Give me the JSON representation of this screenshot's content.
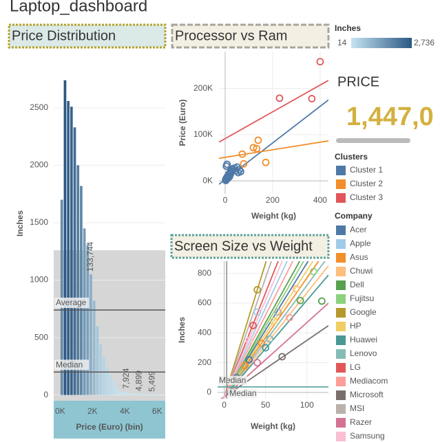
{
  "title": "Laptop_dashboard",
  "kpi": {
    "title": "PRICE",
    "value": "1,447,0"
  },
  "chart_data": [
    {
      "type": "histogram",
      "title": "Price Distribution",
      "x_label": "Price (Euro) (bin)",
      "y_label": "Inches",
      "bins": [
        0,
        200,
        400,
        600,
        800,
        1000,
        1200,
        1400,
        1600,
        1800,
        2000,
        2200,
        2400,
        2600,
        2800,
        3000,
        3200,
        3400,
        3600,
        3800,
        4000,
        4200,
        4400,
        4600,
        4800,
        5000,
        5200,
        5400,
        5600,
        5800,
        6000,
        6200,
        6400
      ],
      "values": [
        1700,
        2740,
        2560,
        2510,
        2330,
        2000,
        1820,
        1450,
        1310,
        1050,
        820,
        600,
        440,
        330,
        240,
        180,
        120,
        60,
        30,
        20,
        30,
        15,
        10,
        15,
        10,
        5,
        10,
        5,
        5,
        5,
        5,
        0
      ],
      "xlim": [
        -400,
        6500
      ],
      "ylim": [
        -50,
        2960
      ],
      "xticks": [
        {
          "value": 0,
          "label": "0K"
        },
        {
          "value": 2000,
          "label": "2K"
        },
        {
          "value": 4000,
          "label": "4K"
        },
        {
          "value": 6000,
          "label": "6K"
        }
      ],
      "yticks": [
        0,
        500,
        1000,
        1500,
        2000,
        2500
      ],
      "grid": true,
      "color_range": [
        "#2a5783",
        "#c6e4f2"
      ],
      "color_legend": {
        "title": "Inches",
        "min": 14,
        "max": {
          "value": 2736,
          "label": "2,736"
        }
      },
      "band": 1260,
      "reference_lines": [
        {
          "label": "Average",
          "value": 740
        },
        {
          "label": "Median",
          "value": 200
        }
      ],
      "bar_labels": [
        {
          "x": 1900,
          "value": 133744,
          "label": "133,744"
        },
        {
          "x": 4100,
          "value": 7924,
          "label": "7,924"
        },
        {
          "x": 4900,
          "value": 4899,
          "label": "4,899"
        },
        {
          "x": 5700,
          "value": 5499,
          "label": "5,499"
        }
      ]
    },
    {
      "type": "scatter",
      "title": "Processor vs Ram",
      "x_label": "Weight (kg)",
      "y_label": "Price (Euro)",
      "legend_title": "Clusters",
      "xlim": [
        -26,
        435
      ],
      "ylim": [
        -28000,
        280000
      ],
      "xticks": [
        0,
        200,
        400
      ],
      "yticks": [
        {
          "value": 0,
          "label": "0K"
        },
        {
          "value": 100000,
          "label": "100K"
        },
        {
          "value": 200000,
          "label": "200K"
        }
      ],
      "grid": true,
      "series": [
        {
          "name": "Cluster 1",
          "color": "#4e79a7",
          "trend": {
            "intercept": 3000,
            "slope": 396
          },
          "x": [
            2,
            4,
            6,
            8,
            10,
            12,
            14,
            16,
            18,
            20,
            22,
            25,
            28,
            30,
            35,
            40,
            45,
            50,
            55,
            60,
            65,
            8,
            5,
            3
          ],
          "y": [
            2000,
            5000,
            3000,
            8000,
            10000,
            6000,
            12000,
            15000,
            9000,
            18000,
            14000,
            20000,
            22000,
            26000,
            25000,
            28000,
            22000,
            30000,
            18000,
            24000,
            20000,
            36000,
            32000,
            1000
          ]
        },
        {
          "name": "Cluster 2",
          "color": "#f28e2b",
          "trend": {
            "intercept": 51000,
            "slope": 82
          },
          "x": [
            139,
            119,
            133,
            72,
            78,
            171
          ],
          "y": [
            88000,
            72000,
            70000,
            58000,
            37000,
            40000
          ]
        },
        {
          "name": "Cluster 3",
          "color": "#e15759",
          "trend": {
            "intercept": 91500,
            "slope": 290
          },
          "x": [
            229,
            365,
            400
          ],
          "y": [
            179000,
            178000,
            258000
          ]
        }
      ]
    },
    {
      "type": "scatter",
      "title": "Screen Size vs Weight",
      "x_label": "Weight (kg)",
      "y_label": "Inches",
      "legend_title": "Company",
      "xlim": [
        -8,
        126
      ],
      "ylim": [
        -42,
        882
      ],
      "xticks": [
        0,
        50,
        100
      ],
      "yticks": [
        0,
        200,
        400,
        600,
        800
      ],
      "grid": true,
      "reference_lines": [
        {
          "label": "Median",
          "axis": "y",
          "value": 37
        },
        {
          "label": "Median",
          "axis": "x",
          "value": 3
        }
      ],
      "series": [
        {
          "name": "Acer",
          "color": "#4e79a7",
          "trend": {
            "intercept": -30,
            "slope": 9
          },
          "x": [
            15,
            30
          ],
          "y": [
            100,
            220
          ]
        },
        {
          "name": "Apple",
          "color": "#a0cbe8",
          "trend": {
            "intercept": -30,
            "slope": 12
          },
          "x": [
            40
          ],
          "y": [
            540
          ]
        },
        {
          "name": "Asus",
          "color": "#f28e2b",
          "trend": {
            "intercept": -30,
            "slope": 8
          },
          "x": [
            25,
            45
          ],
          "y": [
            180,
            330
          ]
        },
        {
          "name": "Chuwi",
          "color": "#ffbe7d",
          "trend": {
            "intercept": -30,
            "slope": 7
          },
          "x": [
            87
          ],
          "y": [
            697
          ]
        },
        {
          "name": "Dell",
          "color": "#59a14f",
          "trend": {
            "intercept": -30,
            "slope": 10
          },
          "x": [
            92,
            118
          ],
          "y": [
            618,
            614
          ]
        },
        {
          "name": "Fujitsu",
          "color": "#8cd17d",
          "trend": {
            "intercept": -30,
            "slope": 9.5
          },
          "x": [
            108
          ],
          "y": [
            812
          ]
        },
        {
          "name": "Google",
          "color": "#b6992d",
          "trend": {
            "intercept": -30,
            "slope": 18
          },
          "x": [
            40
          ],
          "y": [
            690
          ]
        },
        {
          "name": "HP",
          "color": "#f1ce63",
          "trend": {
            "intercept": -30,
            "slope": 8.5
          },
          "x": [
            60
          ],
          "y": [
            480
          ]
        },
        {
          "name": "Huawei",
          "color": "#499894",
          "trend": {
            "intercept": -30,
            "slope": 6.5
          },
          "x": [
            50
          ],
          "y": [
            300
          ]
        },
        {
          "name": "Lenovo",
          "color": "#86bcb6",
          "trend": {
            "intercept": -30,
            "slope": 7.5
          },
          "x": [
            55
          ],
          "y": [
            360
          ]
        },
        {
          "name": "LG",
          "color": "#e15759",
          "trend": {
            "intercept": -30,
            "slope": 14
          },
          "x": [
            35
          ],
          "y": [
            450
          ]
        },
        {
          "name": "Mediacom",
          "color": "#ff9d9a",
          "trend": {
            "intercept": -30,
            "slope": 11
          },
          "x": [
            79
          ],
          "y": [
            503
          ]
        },
        {
          "name": "Microsoft",
          "color": "#79706e",
          "trend": {
            "intercept": -30,
            "slope": 3.8
          },
          "x": [
            70
          ],
          "y": [
            240
          ]
        },
        {
          "name": "MSI",
          "color": "#bab0ac",
          "trend": {
            "intercept": -30,
            "slope": 16
          },
          "x": [
            65
          ],
          "y": [
            540
          ]
        },
        {
          "name": "Razer",
          "color": "#d37295",
          "trend": {
            "intercept": -30,
            "slope": 5
          },
          "x": [
            40
          ],
          "y": [
            200
          ]
        },
        {
          "name": "Samsung",
          "color": "#fabfd2",
          "trend": {
            "intercept": -30,
            "slope": 13
          },
          "x": [
            30
          ],
          "y": [
            350
          ]
        }
      ]
    }
  ]
}
